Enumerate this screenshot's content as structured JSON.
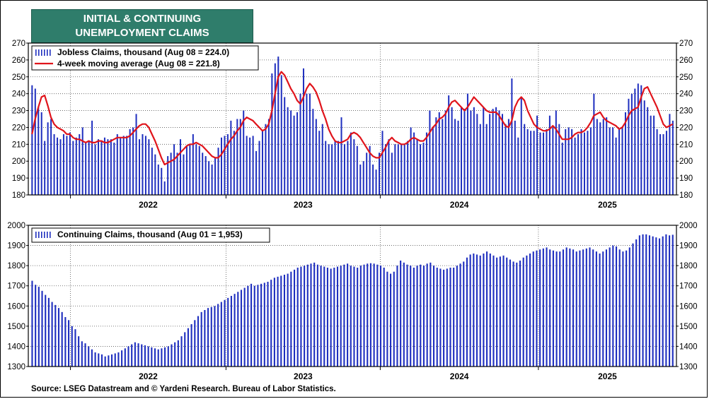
{
  "title": {
    "line1": "INITIAL & CONTINUING",
    "line2": "UNEMPLOYMENT CLAIMS"
  },
  "source": "Source: LSEG Datastream and © Yardeni Research. Bureau of Labor Statistics.",
  "colors": {
    "title_bg": "#2f7d6b",
    "bars": "#1f2fbf",
    "ma_line": "#e0141b",
    "grid": "#555555"
  },
  "chart_data": [
    {
      "type": "bar",
      "panel": "top",
      "series": [
        {
          "name": "Jobless Claims, thousand (Aug 08 = 224.0)",
          "kind": "bar",
          "values": [
            245,
            243,
            232,
            229,
            212,
            223,
            225,
            216,
            214,
            213,
            216,
            215,
            217,
            212,
            214,
            216,
            220,
            211,
            212,
            224,
            210,
            213,
            212,
            214,
            213,
            213,
            211,
            216,
            214,
            215,
            215,
            219,
            220,
            228,
            213,
            216,
            215,
            213,
            208,
            204,
            198,
            196,
            188,
            203,
            205,
            210,
            205,
            213,
            204,
            209,
            210,
            216,
            210,
            209,
            205,
            203,
            200,
            198,
            202,
            208,
            214,
            215,
            216,
            224,
            218,
            225,
            225,
            230,
            215,
            214,
            215,
            206,
            212,
            218,
            222,
            225,
            252,
            258,
            262,
            251,
            238,
            232,
            230,
            227,
            229,
            240,
            255,
            240,
            240,
            231,
            225,
            218,
            222,
            212,
            210,
            210,
            212,
            212,
            226,
            210,
            212,
            217,
            213,
            209,
            198,
            200,
            205,
            209,
            198,
            195,
            205,
            218,
            210,
            213,
            205,
            210,
            210,
            210,
            210,
            212,
            220,
            217,
            213,
            210,
            211,
            217,
            230,
            220,
            226,
            229,
            225,
            230,
            239,
            232,
            225,
            224,
            232,
            231,
            240,
            230,
            232,
            228,
            222,
            232,
            222,
            228,
            231,
            232,
            230,
            228,
            222,
            225,
            249,
            224,
            214,
            238,
            222,
            219,
            218,
            218,
            227,
            217,
            217,
            219,
            227,
            220,
            230,
            222,
            211,
            219,
            220,
            219,
            214,
            216,
            219,
            217,
            218,
            220,
            240,
            225,
            223,
            225,
            226,
            220,
            220,
            214,
            219,
            220,
            229,
            237,
            240,
            243,
            246,
            245,
            236,
            232,
            227,
            227,
            219,
            216,
            216,
            218,
            228,
            224
          ]
        },
        {
          "name": "4-week moving average (Aug 08 = 221.8)",
          "kind": "line",
          "values": [
            216,
            225,
            232,
            238,
            239,
            233,
            226,
            222,
            220,
            219,
            218,
            216,
            216,
            214,
            213,
            213,
            212,
            211,
            212,
            211,
            211,
            212,
            212,
            211,
            211,
            212,
            213,
            214,
            214,
            214,
            214,
            215,
            217,
            219,
            221,
            222,
            222,
            220,
            216,
            212,
            207,
            202,
            198,
            199,
            200,
            201,
            203,
            205,
            207,
            209,
            210,
            210,
            211,
            210,
            209,
            207,
            205,
            203,
            202,
            202,
            204,
            207,
            210,
            213,
            215,
            218,
            220,
            224,
            226,
            225,
            224,
            222,
            220,
            218,
            219,
            222,
            230,
            240,
            250,
            253,
            251,
            247,
            243,
            240,
            236,
            234,
            238,
            243,
            246,
            244,
            241,
            236,
            230,
            225,
            219,
            215,
            212,
            211,
            211,
            212,
            213,
            216,
            217,
            216,
            214,
            211,
            208,
            205,
            203,
            202,
            202,
            205,
            208,
            212,
            214,
            212,
            211,
            210,
            210,
            211,
            213,
            214,
            213,
            212,
            212,
            214,
            217,
            220,
            222,
            225,
            226,
            228,
            232,
            235,
            236,
            234,
            232,
            230,
            232,
            235,
            238,
            236,
            234,
            232,
            230,
            229,
            229,
            229,
            227,
            224,
            221,
            220,
            224,
            232,
            236,
            238,
            236,
            230,
            226,
            222,
            220,
            219,
            218,
            218,
            219,
            221,
            219,
            216,
            213,
            213,
            213,
            214,
            216,
            217,
            217,
            218,
            220,
            223,
            227,
            228,
            229,
            226,
            224,
            223,
            222,
            221,
            219,
            220,
            223,
            227,
            230,
            231,
            232,
            238,
            243,
            244,
            240,
            236,
            232,
            227,
            222,
            220,
            221,
            222
          ]
        }
      ],
      "ylim": [
        180,
        270
      ],
      "yticks": [
        180,
        190,
        200,
        210,
        220,
        230,
        240,
        250,
        260,
        270
      ],
      "xticks": [
        "2022",
        "2023",
        "2024",
        "2025"
      ],
      "legend": "top-left",
      "grid": true
    },
    {
      "type": "bar",
      "panel": "bottom",
      "series": [
        {
          "name": "Continuing Claims, thousand (Aug 01 = 1,953)",
          "kind": "bar",
          "values": [
            1725,
            1705,
            1695,
            1675,
            1655,
            1640,
            1620,
            1605,
            1590,
            1570,
            1545,
            1530,
            1500,
            1485,
            1450,
            1425,
            1415,
            1400,
            1385,
            1370,
            1365,
            1360,
            1350,
            1355,
            1360,
            1365,
            1370,
            1380,
            1390,
            1400,
            1410,
            1420,
            1415,
            1410,
            1405,
            1400,
            1395,
            1390,
            1385,
            1390,
            1395,
            1400,
            1410,
            1420,
            1430,
            1450,
            1470,
            1490,
            1510,
            1530,
            1550,
            1570,
            1580,
            1590,
            1595,
            1600,
            1610,
            1620,
            1630,
            1640,
            1650,
            1660,
            1670,
            1680,
            1690,
            1700,
            1710,
            1700,
            1705,
            1710,
            1715,
            1720,
            1730,
            1740,
            1745,
            1750,
            1755,
            1760,
            1770,
            1780,
            1790,
            1795,
            1800,
            1805,
            1810,
            1815,
            1805,
            1800,
            1795,
            1790,
            1785,
            1790,
            1795,
            1800,
            1805,
            1810,
            1800,
            1795,
            1790,
            1800,
            1805,
            1810,
            1812,
            1810,
            1805,
            1800,
            1790,
            1770,
            1760,
            1770,
            1800,
            1825,
            1815,
            1805,
            1800,
            1790,
            1800,
            1805,
            1800,
            1810,
            1815,
            1800,
            1790,
            1785,
            1780,
            1785,
            1790,
            1790,
            1800,
            1810,
            1820,
            1840,
            1855,
            1860,
            1855,
            1850,
            1860,
            1870,
            1860,
            1850,
            1840,
            1845,
            1850,
            1840,
            1830,
            1820,
            1815,
            1825,
            1840,
            1850,
            1860,
            1870,
            1875,
            1880,
            1885,
            1890,
            1880,
            1875,
            1870,
            1870,
            1880,
            1890,
            1885,
            1880,
            1870,
            1875,
            1880,
            1885,
            1890,
            1880,
            1870,
            1860,
            1870,
            1880,
            1890,
            1900,
            1895,
            1880,
            1870,
            1875,
            1890,
            1910,
            1930,
            1950,
            1955,
            1955,
            1950,
            1945,
            1940,
            1935,
            1945,
            1955,
            1950,
            1953
          ]
        }
      ],
      "ylim": [
        1300,
        2000
      ],
      "yticks": [
        1300,
        1400,
        1500,
        1600,
        1700,
        1800,
        1900,
        2000
      ],
      "xticks": [
        "2022",
        "2023",
        "2024",
        "2025"
      ],
      "legend": "top-left",
      "grid": true
    }
  ]
}
